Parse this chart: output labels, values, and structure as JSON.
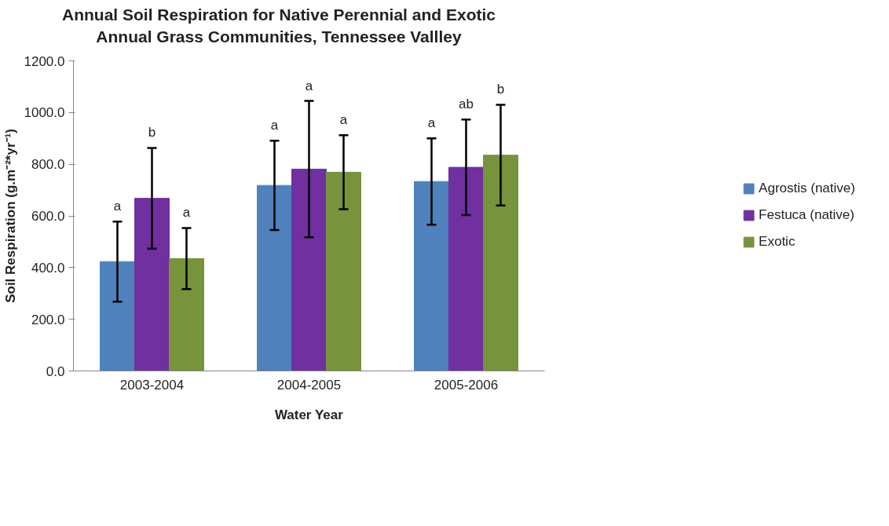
{
  "chart_data": {
    "type": "bar",
    "title": "Annual Soil Respiration for Native Perennial and Exotic Annual Grass Communities, Tennessee Vallley",
    "xlabel": "Water Year",
    "ylabel": "Soil Respiration (g.m⁻²*yr⁻¹)",
    "categories": [
      "2003-2004",
      "2004-2005",
      "2005-2006"
    ],
    "series": [
      {
        "name": "Agrostis (native)",
        "color": "#4f81bd",
        "values": [
          423,
          718,
          733
        ],
        "errors": [
          155,
          173,
          167
        ]
      },
      {
        "name": "Festuca (native)",
        "color": "#7030a0",
        "values": [
          668,
          781,
          788
        ],
        "errors": [
          195,
          264,
          185
        ]
      },
      {
        "name": "Exotic",
        "color": "#77933c",
        "values": [
          435,
          769,
          835
        ],
        "errors": [
          118,
          143,
          195
        ]
      }
    ],
    "annotations": [
      "a",
      "b",
      "a",
      "a",
      "a",
      "a",
      "a",
      "ab",
      "b"
    ],
    "ylim": [
      0,
      1200
    ],
    "yticks": [
      {
        "value": 0,
        "label": "0.0"
      },
      {
        "value": 200,
        "label": "200.0"
      },
      {
        "value": 400,
        "label": "400.0"
      },
      {
        "value": 600,
        "label": "600.0"
      },
      {
        "value": 800,
        "label": "800.0"
      },
      {
        "value": 1000,
        "label": "1000.0"
      },
      {
        "value": 1200,
        "label": "1200.0"
      }
    ],
    "grid": false,
    "legend": "right"
  }
}
